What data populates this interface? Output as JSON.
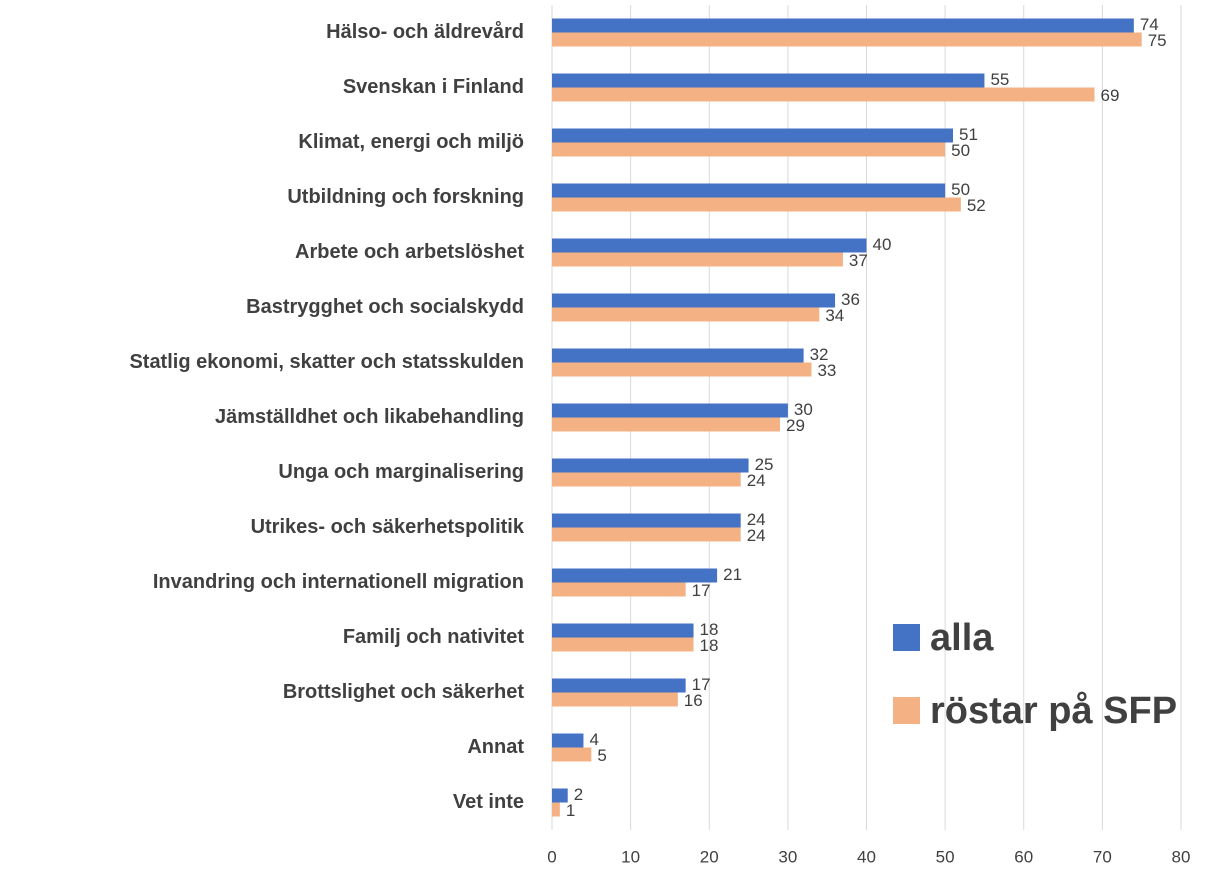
{
  "chart_data": {
    "type": "bar",
    "orientation": "horizontal",
    "categories": [
      "Hälso- och äldrevård",
      "Svenskan i Finland",
      "Klimat, energi och miljö",
      "Utbildning och forskning",
      "Arbete och arbetslöshet",
      "Bastrygghet och socialskydd",
      "Statlig ekonomi, skatter och statsskulden",
      "Jämställdhet och likabehandling",
      "Unga och marginalisering",
      "Utrikes- och säkerhetspolitik",
      "Invandring och internationell migration",
      "Familj och nativitet",
      "Brottslighet och säkerhet",
      "Annat",
      "Vet inte"
    ],
    "series": [
      {
        "name": "alla",
        "color": "#4472c4",
        "values": [
          74,
          55,
          51,
          50,
          40,
          36,
          32,
          30,
          25,
          24,
          21,
          18,
          17,
          4,
          2
        ]
      },
      {
        "name": "röstar på SFP",
        "color": "#f4b183",
        "values": [
          75,
          69,
          50,
          52,
          37,
          34,
          33,
          29,
          24,
          24,
          17,
          18,
          16,
          5,
          1
        ]
      }
    ],
    "xlim": [
      0,
      80
    ],
    "xticks": [
      0,
      10,
      20,
      30,
      40,
      50,
      60,
      70,
      80
    ],
    "grid": true,
    "legend": "lower right"
  }
}
